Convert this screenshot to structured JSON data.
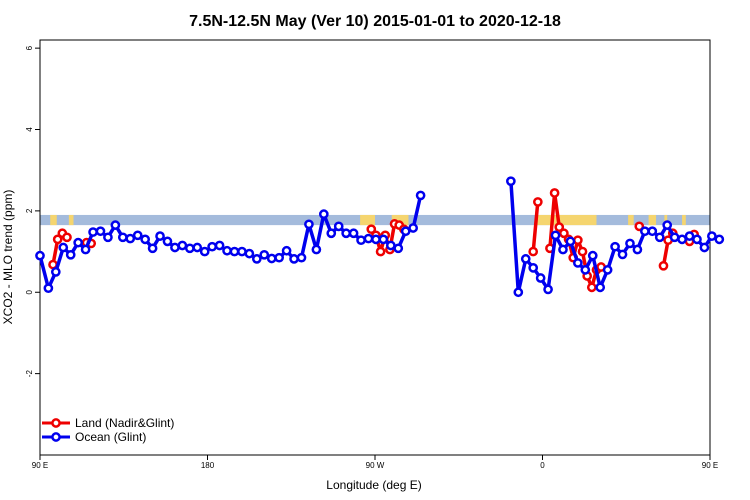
{
  "chart_data": {
    "type": "line",
    "title": "7.5N-12.5N May (Ver 10)   2015-01-01 to 2020-12-18",
    "xlabel": "Longitude (deg E)",
    "ylabel": "XCO2 - MLO trend (ppm)",
    "xlim": [
      90,
      450
    ],
    "ylim": [
      -4,
      6.2
    ],
    "x_ticks": [
      {
        "value": 90,
        "label": "90 E"
      },
      {
        "value": 180,
        "label": "180"
      },
      {
        "value": 270,
        "label": "90 W"
      },
      {
        "value": 360,
        "label": "0"
      },
      {
        "value": 450,
        "label": "90 E"
      },
      {
        "value": 540,
        "label": "180"
      }
    ],
    "y_ticks": [
      {
        "value": -2,
        "label": "-2"
      },
      {
        "value": 0,
        "label": "0"
      },
      {
        "value": 2,
        "label": "2"
      },
      {
        "value": 4,
        "label": "4"
      },
      {
        "value": 6,
        "label": "6"
      }
    ],
    "band": {
      "y_min": 1.65,
      "y_max": 1.9,
      "ocean_color": "#a4bbdc",
      "land_color": "#f5d56f"
    },
    "legend_position": "bottom-left",
    "series": [
      {
        "name": "Land (Nadir&Glint)",
        "color": "#ee0000",
        "segments": [
          [
            [
              97,
              0.68
            ],
            [
              99.5,
              1.3
            ],
            [
              102,
              1.45
            ],
            [
              104.5,
              1.35
            ]
          ],
          [
            [
              115,
              1.22
            ],
            [
              117.5,
              1.2
            ]
          ],
          [
            [
              268,
              1.55
            ],
            [
              270.5,
              1.4
            ],
            [
              273,
              1.0
            ],
            [
              275.5,
              1.4
            ],
            [
              278,
              1.05
            ],
            [
              280.5,
              1.68
            ],
            [
              283,
              1.65
            ],
            [
              285.5,
              1.55
            ]
          ],
          [
            [
              355,
              1.0
            ],
            [
              357.5,
              2.22
            ]
          ],
          [
            [
              364,
              1.08
            ],
            [
              366.5,
              2.44
            ],
            [
              369,
              1.6
            ],
            [
              371.5,
              1.45
            ],
            [
              374,
              1.3
            ],
            [
              376.5,
              0.85
            ],
            [
              379,
              1.28
            ],
            [
              381.5,
              1.0
            ],
            [
              384,
              0.4
            ],
            [
              386.5,
              0.12
            ],
            [
              389,
              0.55
            ],
            [
              391.5,
              0.62
            ]
          ],
          [
            [
              412,
              1.62
            ]
          ],
          [
            [
              425,
              0.65
            ],
            [
              427.5,
              1.28
            ],
            [
              430,
              1.45
            ]
          ],
          [
            [
              439,
              1.25
            ],
            [
              441.5,
              1.42
            ]
          ]
        ]
      },
      {
        "name": "Ocean (Glint)",
        "color": "#0000ee",
        "segments": [
          [
            [
              90,
              0.9
            ],
            [
              94.5,
              0.1
            ],
            [
              98.5,
              0.5
            ],
            [
              102.5,
              1.1
            ],
            [
              106.5,
              0.92
            ],
            [
              110.5,
              1.22
            ],
            [
              114.5,
              1.05
            ],
            [
              118.5,
              1.48
            ],
            [
              122.5,
              1.5
            ],
            [
              126.5,
              1.35
            ],
            [
              130.5,
              1.65
            ],
            [
              134.5,
              1.35
            ],
            [
              138.5,
              1.32
            ],
            [
              142.5,
              1.4
            ],
            [
              146.5,
              1.3
            ],
            [
              150.5,
              1.08
            ],
            [
              154.5,
              1.38
            ],
            [
              158.5,
              1.25
            ],
            [
              162.5,
              1.1
            ],
            [
              166.5,
              1.15
            ],
            [
              170.5,
              1.08
            ],
            [
              174.5,
              1.1
            ],
            [
              178.5,
              1.0
            ],
            [
              182.5,
              1.12
            ],
            [
              186.5,
              1.15
            ],
            [
              190.5,
              1.02
            ],
            [
              194.5,
              1.0
            ],
            [
              198.5,
              1.0
            ],
            [
              202.5,
              0.95
            ],
            [
              206.5,
              0.82
            ],
            [
              210.5,
              0.92
            ],
            [
              214.5,
              0.83
            ],
            [
              218.5,
              0.85
            ],
            [
              222.5,
              1.02
            ],
            [
              226.5,
              0.82
            ],
            [
              230.5,
              0.85
            ],
            [
              234.5,
              1.67
            ],
            [
              238.5,
              1.05
            ],
            [
              242.5,
              1.92
            ],
            [
              246.5,
              1.45
            ],
            [
              250.5,
              1.62
            ],
            [
              254.5,
              1.45
            ],
            [
              258.5,
              1.45
            ],
            [
              262.5,
              1.28
            ],
            [
              266.5,
              1.32
            ],
            [
              270.5,
              1.3
            ],
            [
              274.5,
              1.3
            ],
            [
              278.5,
              1.15
            ],
            [
              282.5,
              1.08
            ],
            [
              286.5,
              1.5
            ],
            [
              290.5,
              1.58
            ],
            [
              294.5,
              2.38
            ]
          ],
          [
            [
              343,
              2.73
            ],
            [
              347,
              0.0
            ],
            [
              351,
              0.82
            ],
            [
              355,
              0.6
            ],
            [
              359,
              0.35
            ],
            [
              363,
              0.07
            ],
            [
              367,
              1.4
            ],
            [
              371,
              1.05
            ],
            [
              375,
              1.25
            ],
            [
              379,
              0.72
            ],
            [
              383,
              0.55
            ],
            [
              387,
              0.9
            ],
            [
              391,
              0.12
            ],
            [
              395,
              0.55
            ],
            [
              399,
              1.12
            ],
            [
              403,
              0.93
            ],
            [
              407,
              1.2
            ],
            [
              411,
              1.05
            ],
            [
              415,
              1.5
            ],
            [
              419,
              1.5
            ],
            [
              423,
              1.35
            ],
            [
              427,
              1.65
            ],
            [
              431,
              1.35
            ],
            [
              435,
              1.3
            ],
            [
              439,
              1.38
            ],
            [
              443,
              1.3
            ],
            [
              447,
              1.1
            ],
            [
              451,
              1.38
            ],
            [
              455,
              1.3
            ]
          ]
        ]
      }
    ]
  }
}
